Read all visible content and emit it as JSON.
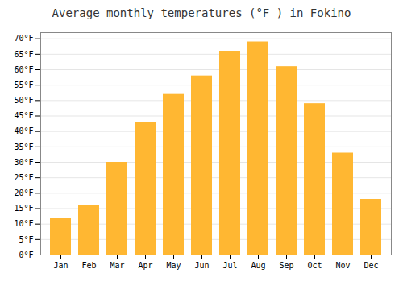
{
  "chart_data": {
    "type": "bar",
    "title": "Average monthly temperatures (°F ) in Fokino",
    "categories": [
      "Jan",
      "Feb",
      "Mar",
      "Apr",
      "May",
      "Jun",
      "Jul",
      "Aug",
      "Sep",
      "Oct",
      "Nov",
      "Dec"
    ],
    "values": [
      12,
      16,
      30,
      43,
      52,
      58,
      66,
      69,
      61,
      49,
      33,
      18
    ],
    "color": "#FFB732",
    "ylim": [
      0,
      72
    ],
    "yticks": [
      {
        "value": 0,
        "label": "0°F"
      },
      {
        "value": 5,
        "label": "5°F"
      },
      {
        "value": 10,
        "label": "10°F"
      },
      {
        "value": 15,
        "label": "15°F"
      },
      {
        "value": 20,
        "label": "20°F"
      },
      {
        "value": 25,
        "label": "25°F"
      },
      {
        "value": 30,
        "label": "30°F"
      },
      {
        "value": 35,
        "label": "35°F"
      },
      {
        "value": 40,
        "label": "40°F"
      },
      {
        "value": 45,
        "label": "45°F"
      },
      {
        "value": 50,
        "label": "50°F"
      },
      {
        "value": 55,
        "label": "55°F"
      },
      {
        "value": 60,
        "label": "60°F"
      },
      {
        "value": 65,
        "label": "65°F"
      },
      {
        "value": 70,
        "label": "70°F"
      }
    ],
    "grid": true
  }
}
